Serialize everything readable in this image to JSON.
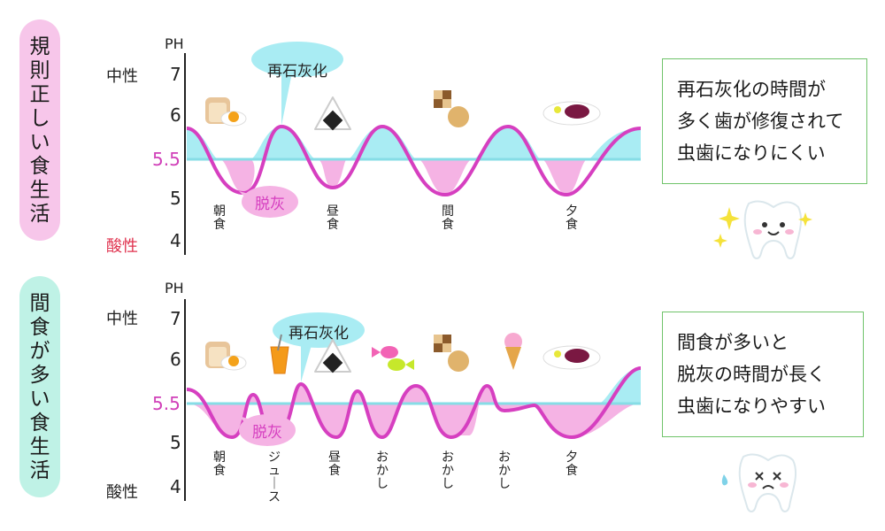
{
  "panels": [
    {
      "title": "規則正しい食生活",
      "title_color": "#f7c6ea",
      "neutral_label": "中性",
      "acid_label": "酸性",
      "ph_label": "PH",
      "ticks": [
        "7",
        "6",
        "5.5",
        "5",
        "4"
      ],
      "remineral_label": "再石灰化",
      "demineral_label": "脱灰",
      "meals": [
        "朝食",
        "昼食",
        "間食",
        "夕食"
      ],
      "message": [
        "再石灰化の時間が",
        "多く歯が修復されて",
        "虫歯になりにくい"
      ],
      "icons": [
        "toast-egg-icon",
        "onigiri-icon",
        "cookies-icon",
        "curry-plate-icon",
        "happy-tooth-icon",
        "sparkle-icon"
      ]
    },
    {
      "title": "間食が多い食生活",
      "title_color": "#bff2e6",
      "neutral_label": "中性",
      "acid_label": "酸性",
      "ph_label": "PH",
      "ticks": [
        "7",
        "6",
        "5.5",
        "5",
        "4"
      ],
      "remineral_label": "再石灰化",
      "demineral_label": "脱灰",
      "meals": [
        "朝食",
        "ジュース",
        "昼食",
        "おかし",
        "おかし",
        "おかし",
        "夕食"
      ],
      "message": [
        "間食が多いと",
        "脱灰の時間が長く",
        "虫歯になりやすい"
      ],
      "icons": [
        "toast-egg-icon",
        "juice-icon",
        "onigiri-icon",
        "candy-icon",
        "cookies-icon",
        "ice-cream-icon",
        "curry-plate-icon",
        "sad-tooth-icon"
      ]
    }
  ],
  "colors": {
    "curve": "#d63fc0",
    "upper_fill": "#a9ecf3",
    "lower_fill": "#f5b3e4",
    "threshold": "#86dde6",
    "acid_text": "#e0334f",
    "threshold_text": "#d03fb8"
  }
}
